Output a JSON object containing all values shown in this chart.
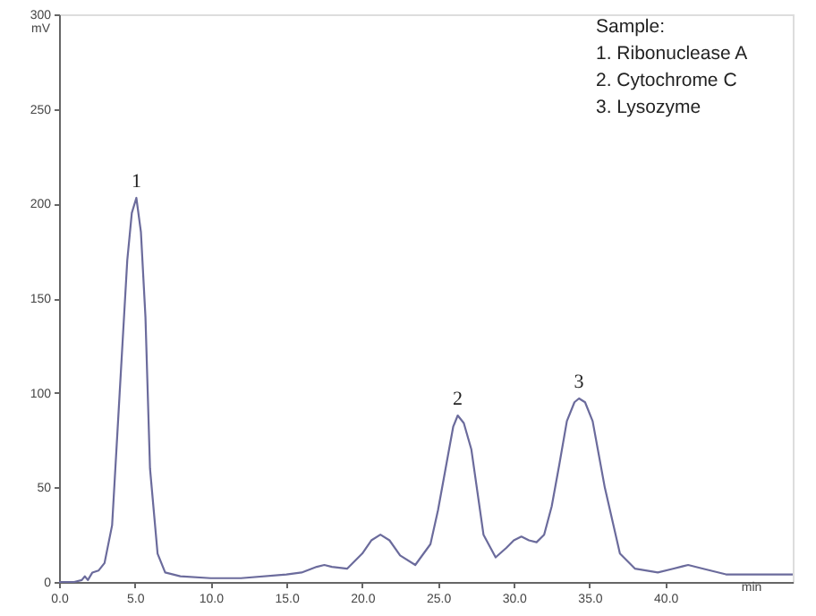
{
  "chart_data": {
    "type": "line",
    "xlabel": "min",
    "ylabel": "mV",
    "x": [
      0,
      1.0,
      1.5,
      1.7,
      1.9,
      2.2,
      2.6,
      3.0,
      3.5,
      4.0,
      4.5,
      4.8,
      5.1,
      5.4,
      5.7,
      6.0,
      6.5,
      7.0,
      8.0,
      10.0,
      12.0,
      15.0,
      16.0,
      17.0,
      17.5,
      18.0,
      19.0,
      20.0,
      20.6,
      21.2,
      21.8,
      22.5,
      23.5,
      24.5,
      25.0,
      25.5,
      26.0,
      26.3,
      26.7,
      27.2,
      28.0,
      28.8,
      29.5,
      30.0,
      30.5,
      31.0,
      31.5,
      32.0,
      32.5,
      33.0,
      33.5,
      34.0,
      34.3,
      34.7,
      35.2,
      36.0,
      37.0,
      38.0,
      39.5,
      40.5,
      41.5,
      42.5,
      44.0,
      46.0,
      48.4
    ],
    "series": [
      {
        "color": "#6b6b9c",
        "values": [
          0,
          0,
          1,
          3,
          1,
          5,
          6,
          10,
          30,
          100,
          170,
          195,
          203,
          185,
          140,
          60,
          15,
          5,
          3,
          2,
          2,
          4,
          5,
          8,
          9,
          8,
          7,
          15,
          22,
          25,
          22,
          14,
          9,
          20,
          38,
          60,
          82,
          88,
          84,
          70,
          25,
          13,
          18,
          22,
          24,
          22,
          21,
          25,
          40,
          62,
          85,
          95,
          97,
          95,
          85,
          50,
          15,
          7,
          5,
          7,
          9,
          7,
          4,
          4,
          4
        ]
      }
    ],
    "xlim": [
      0,
      48.4
    ],
    "xticks": [
      {
        "value": 0,
        "label": "0.0"
      },
      {
        "value": 5,
        "label": "5.0"
      },
      {
        "value": 10,
        "label": "10.0"
      },
      {
        "value": 15,
        "label": "15.0"
      },
      {
        "value": 20,
        "label": "20.0"
      },
      {
        "value": 25,
        "label": "25.0"
      },
      {
        "value": 30,
        "label": "30.0"
      },
      {
        "value": 35,
        "label": "35.0"
      },
      {
        "value": 40,
        "label": "40.0"
      }
    ],
    "ylim": [
      0,
      300
    ],
    "yticks": [
      0,
      50,
      100,
      150,
      200,
      250,
      300
    ],
    "grid": false,
    "annotations": [
      {
        "text": "1",
        "x": 5.1,
        "y": 203
      },
      {
        "text": "2",
        "x": 26.3,
        "y": 88
      },
      {
        "text": "3",
        "x": 34.3,
        "y": 97
      },
      "Sample:",
      "1. Ribonuclease A",
      "2. Cytochrome C",
      "3. Lysozyme"
    ]
  }
}
